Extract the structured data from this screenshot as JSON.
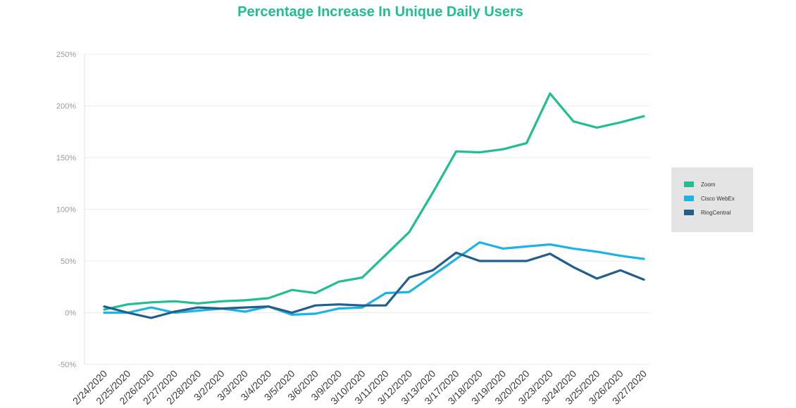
{
  "chart_data": {
    "type": "line",
    "title": "Percentage Increase In Unique Daily Users",
    "xlabel": "",
    "ylabel": "",
    "ylim": [
      -50,
      250
    ],
    "yticks": [
      -50,
      0,
      50,
      100,
      150,
      200,
      250
    ],
    "ytick_labels": [
      "-50%",
      "0%",
      "50%",
      "100%",
      "150%",
      "200%",
      "250%"
    ],
    "grid": "horizontal",
    "legend_position": "right",
    "categories": [
      "2/24/2020",
      "2/25/2020",
      "2/26/2020",
      "2/27/2020",
      "2/28/2020",
      "3/2/2020",
      "3/3/2020",
      "3/4/2020",
      "3/5/2020",
      "3/6/2020",
      "3/9/2020",
      "3/10/2020",
      "3/11/2020",
      "3/12/2020",
      "3/13/2020",
      "3/17/2020",
      "3/18/2020",
      "3/19/2020",
      "3/20/2020",
      "3/23/2020",
      "3/24/2020",
      "3/25/2020",
      "3/26/2020",
      "3/27/2020"
    ],
    "series": [
      {
        "name": "Zoom",
        "color": "#1fbf8f",
        "values": [
          3,
          8,
          10,
          11,
          9,
          11,
          12,
          14,
          22,
          19,
          30,
          34,
          56,
          78,
          116,
          156,
          155,
          158,
          164,
          212,
          185,
          179,
          184,
          190
        ]
      },
      {
        "name": "Cisco WebEx",
        "color": "#1cb3e6",
        "values": [
          0,
          0,
          5,
          0,
          2,
          4,
          1,
          6,
          -2,
          -1,
          4,
          5,
          19,
          20,
          36,
          52,
          68,
          62,
          64,
          66,
          62,
          59,
          55,
          52
        ]
      },
      {
        "name": "RingCentral",
        "color": "#245e8c",
        "values": [
          6,
          0,
          -5,
          1,
          5,
          4,
          5,
          6,
          0,
          7,
          8,
          7,
          7,
          34,
          41,
          58,
          50,
          50,
          50,
          57,
          44,
          33,
          41,
          32
        ]
      }
    ]
  }
}
